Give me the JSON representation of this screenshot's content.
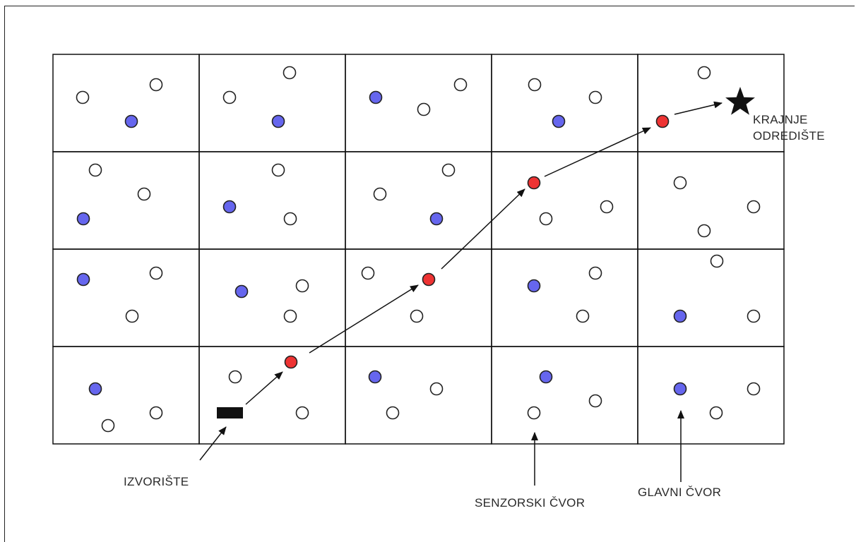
{
  "grid": {
    "columns": 5,
    "rows": 4
  },
  "labels": {
    "destination_line1": "KRAJNJE",
    "destination_line2": "ODREDIŠTE",
    "source": "IZVORIŠTE",
    "sensor_node": "SENZORSKI ČVOR",
    "main_node": "GLAVNI ČVOR"
  },
  "colors": {
    "sensor_node": "#ffffff",
    "main_node": "#6666ee",
    "route_node": "#ee3333",
    "source": "#111111",
    "destination": "#111111"
  },
  "legend_nodes": {
    "sensor_node": "white circle",
    "main_node": "blue circle",
    "route_node": "red circle",
    "source": "black rectangle",
    "destination": "black star"
  }
}
